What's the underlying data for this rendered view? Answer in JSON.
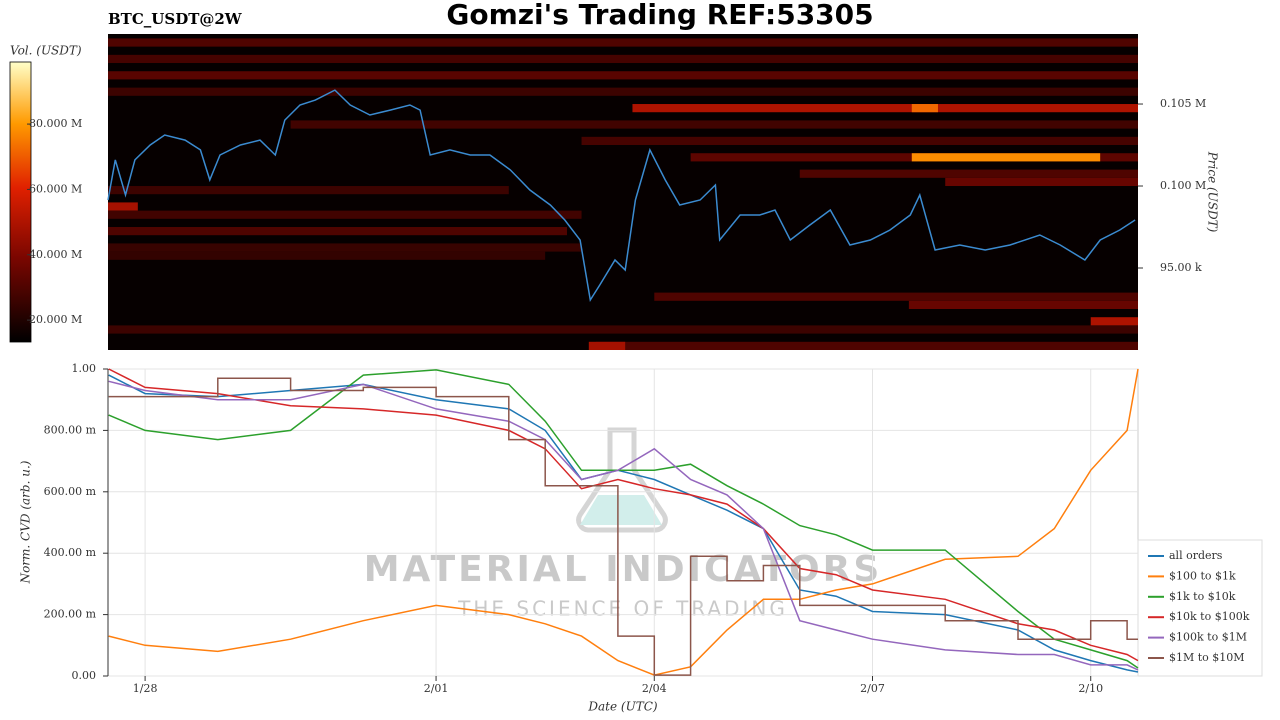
{
  "chart_data": [
    {
      "type": "heatmap",
      "title": "Gomzi's Trading REF:53305",
      "subtitle": "BTC_USDT@2W",
      "ylabel": "Price (USDT)",
      "colorbar_label": "Vol. (USDT)",
      "xlim": [
        -0.51,
        13.65
      ],
      "ylim": [
        90000,
        109270
      ],
      "yticks": [
        {
          "value": 95000,
          "label": "95.00 k"
        },
        {
          "value": 100000,
          "label": "0.100 M"
        },
        {
          "value": 105000,
          "label": "0.105 M"
        }
      ],
      "clim": [
        13300000,
        99000000
      ],
      "cticks": [
        {
          "value": 20000000,
          "label": "20.000 M"
        },
        {
          "value": 40000000,
          "label": "40.000 M"
        },
        {
          "value": 60000000,
          "label": "60.000 M"
        },
        {
          "value": 80000000,
          "label": "80.000 M"
        }
      ],
      "cells": [
        {
          "x": [
            -0.51,
            13.65
          ],
          "y": [
            108500,
            109000
          ],
          "value": 30000000
        },
        {
          "x": [
            -0.51,
            13.65
          ],
          "y": [
            107500,
            108000
          ],
          "value": 28000000
        },
        {
          "x": [
            -0.51,
            13.65
          ],
          "y": [
            106500,
            107000
          ],
          "value": 32000000
        },
        {
          "x": [
            -0.51,
            13.65
          ],
          "y": [
            105500,
            106000
          ],
          "value": 26000000
        },
        {
          "x": [
            6.7,
            13.65
          ],
          "y": [
            104500,
            105000
          ],
          "value": 50000000
        },
        {
          "x": [
            10.54,
            10.9
          ],
          "y": [
            104500,
            105000
          ],
          "value": 72000000
        },
        {
          "x": [
            2,
            13.65
          ],
          "y": [
            103500,
            104000
          ],
          "value": 27000000
        },
        {
          "x": [
            6,
            13.65
          ],
          "y": [
            102500,
            103000
          ],
          "value": 28000000
        },
        {
          "x": [
            7.5,
            13.65
          ],
          "y": [
            101500,
            102000
          ],
          "value": 33000000
        },
        {
          "x": [
            10.54,
            13.13
          ],
          "y": [
            101500,
            102000
          ],
          "value": 78000000
        },
        {
          "x": [
            9,
            13.65
          ],
          "y": [
            100500,
            101000
          ],
          "value": 30000000
        },
        {
          "x": [
            11,
            13.65
          ],
          "y": [
            100000,
            100500
          ],
          "value": 35000000
        },
        {
          "x": [
            -0.51,
            5
          ],
          "y": [
            99500,
            100000
          ],
          "value": 26000000
        },
        {
          "x": [
            -0.51,
            -0.1
          ],
          "y": [
            98500,
            99000
          ],
          "value": 48000000
        },
        {
          "x": [
            -0.51,
            6
          ],
          "y": [
            98000,
            98500
          ],
          "value": 27000000
        },
        {
          "x": [
            -0.51,
            5.8
          ],
          "y": [
            97000,
            97500
          ],
          "value": 30000000
        },
        {
          "x": [
            -0.51,
            6
          ],
          "y": [
            96000,
            96500
          ],
          "value": 25000000
        },
        {
          "x": [
            -0.51,
            5.5
          ],
          "y": [
            95500,
            96000
          ],
          "value": 24000000
        },
        {
          "x": [
            7,
            13.65
          ],
          "y": [
            93000,
            93500
          ],
          "value": 30000000
        },
        {
          "x": [
            10.5,
            13.65
          ],
          "y": [
            92500,
            93000
          ],
          "value": 35000000
        },
        {
          "x": [
            13,
            13.65
          ],
          "y": [
            91500,
            92000
          ],
          "value": 50000000
        },
        {
          "x": [
            -0.51,
            13.65
          ],
          "y": [
            91000,
            91500
          ],
          "value": 26000000
        },
        {
          "x": [
            6.2,
            13.65
          ],
          "y": [
            90000,
            90500
          ],
          "value": 30000000
        },
        {
          "x": [
            6.1,
            6.6
          ],
          "y": [
            90000,
            90500
          ],
          "value": 48000000
        }
      ],
      "price_line": {
        "color": "#3b8bd0",
        "x": [
          -0.51,
          -0.41,
          -0.27,
          -0.14,
          0.07,
          0.27,
          0.55,
          0.76,
          0.89,
          1.03,
          1.31,
          1.58,
          1.79,
          1.92,
          2.13,
          2.34,
          2.61,
          2.82,
          3.09,
          3.37,
          3.64,
          3.78,
          3.92,
          4.19,
          4.47,
          4.74,
          5.02,
          5.29,
          5.57,
          5.77,
          5.98,
          6.12,
          6.25,
          6.46,
          6.6,
          6.74,
          6.94,
          7.15,
          7.35,
          7.63,
          7.84,
          7.9,
          8.18,
          8.45,
          8.66,
          8.87,
          9.14,
          9.42,
          9.69,
          9.97,
          10.24,
          10.52,
          10.65,
          10.86,
          11.2,
          11.55,
          11.89,
          12.3,
          12.58,
          12.92,
          13.13,
          13.4,
          13.61
        ],
        "values": [
          99150,
          101590,
          99450,
          101590,
          102500,
          103110,
          102800,
          102200,
          100370,
          101890,
          102500,
          102800,
          101890,
          104020,
          104940,
          105240,
          105850,
          104940,
          104330,
          104630,
          104940,
          104630,
          101890,
          102200,
          101890,
          101890,
          100980,
          99760,
          98840,
          97930,
          96710,
          93050,
          93960,
          95490,
          94880,
          99150,
          102200,
          100370,
          98840,
          99150,
          100060,
          96710,
          98230,
          98230,
          98540,
          96710,
          97620,
          98540,
          96400,
          96710,
          97320,
          98230,
          99450,
          96100,
          96400,
          96100,
          96400,
          97010,
          96400,
          95490,
          96710,
          97320,
          97930
        ]
      }
    },
    {
      "type": "line",
      "xlabel": "Date (UTC)",
      "ylabel": "Norm. CVD (arb. u.)",
      "grid": true,
      "legend": "right",
      "xlim": [
        -0.51,
        13.65
      ],
      "ylim": [
        0,
        1
      ],
      "xticks": [
        {
          "value": 0,
          "label": "1/28"
        },
        {
          "value": 4,
          "label": "2/01"
        },
        {
          "value": 7,
          "label": "2/04"
        },
        {
          "value": 10,
          "label": "2/07"
        },
        {
          "value": 13,
          "label": "2/10"
        }
      ],
      "yticks": [
        {
          "value": 0,
          "label": "0.00"
        },
        {
          "value": 0.2,
          "label": "200.00 m"
        },
        {
          "value": 0.4,
          "label": "400.00 m"
        },
        {
          "value": 0.6,
          "label": "600.00 m"
        },
        {
          "value": 0.8,
          "label": "800.00 m"
        },
        {
          "value": 1,
          "label": "1.00"
        }
      ],
      "x": [
        -0.5,
        0,
        1,
        2,
        3,
        4,
        5,
        5.5,
        6,
        6.5,
        7,
        7.5,
        8,
        8.5,
        9,
        9.5,
        10,
        11,
        12,
        12.5,
        13,
        13.5,
        13.65
      ],
      "series": [
        {
          "name": "all orders",
          "color": "#1f77b4",
          "values": [
            0.98,
            0.92,
            0.91,
            0.93,
            0.95,
            0.9,
            0.87,
            0.8,
            0.64,
            0.67,
            0.64,
            0.59,
            0.54,
            0.48,
            0.28,
            0.26,
            0.21,
            0.2,
            0.15,
            0.085,
            0.05,
            0.02,
            0.013
          ]
        },
        {
          "name": "$100 to $1k",
          "color": "#ff7f0e",
          "values": [
            0.13,
            0.1,
            0.08,
            0.12,
            0.18,
            0.23,
            0.2,
            0.17,
            0.13,
            0.05,
            0.003,
            0.03,
            0.15,
            0.25,
            0.25,
            0.28,
            0.3,
            0.38,
            0.39,
            0.48,
            0.67,
            0.8,
            1.0
          ]
        },
        {
          "name": "$1k to $10k",
          "color": "#2ca02c",
          "values": [
            0.85,
            0.8,
            0.77,
            0.8,
            0.98,
            0.997,
            0.95,
            0.83,
            0.67,
            0.67,
            0.67,
            0.69,
            0.62,
            0.56,
            0.49,
            0.46,
            0.41,
            0.41,
            0.21,
            0.12,
            0.085,
            0.05,
            0.026
          ]
        },
        {
          "name": "$10k to $100k",
          "color": "#d62728",
          "values": [
            1.0,
            0.94,
            0.92,
            0.88,
            0.87,
            0.85,
            0.8,
            0.74,
            0.61,
            0.64,
            0.61,
            0.59,
            0.56,
            0.48,
            0.35,
            0.33,
            0.28,
            0.25,
            0.17,
            0.15,
            0.1,
            0.07,
            0.05
          ]
        },
        {
          "name": "$100k to $1M",
          "color": "#9467bd",
          "values": [
            0.96,
            0.93,
            0.9,
            0.9,
            0.95,
            0.87,
            0.83,
            0.77,
            0.64,
            0.67,
            0.74,
            0.64,
            0.59,
            0.48,
            0.18,
            0.15,
            0.12,
            0.085,
            0.07,
            0.07,
            0.036,
            0.036,
            0.02
          ]
        },
        {
          "name": "$1M to $10M",
          "color": "#8c564b",
          "line_shape": "hv",
          "values": [
            0.91,
            0.91,
            0.97,
            0.93,
            0.94,
            0.91,
            0.77,
            0.62,
            0.62,
            0.13,
            0.003,
            0.39,
            0.31,
            0.36,
            0.23,
            0.23,
            0.23,
            0.18,
            0.12,
            0.12,
            0.18,
            0.12,
            0.12
          ]
        }
      ]
    }
  ],
  "watermark": {
    "text": "MATERIAL INDICATORS",
    "tagline": "THE SCIENCE OF TRADING"
  }
}
